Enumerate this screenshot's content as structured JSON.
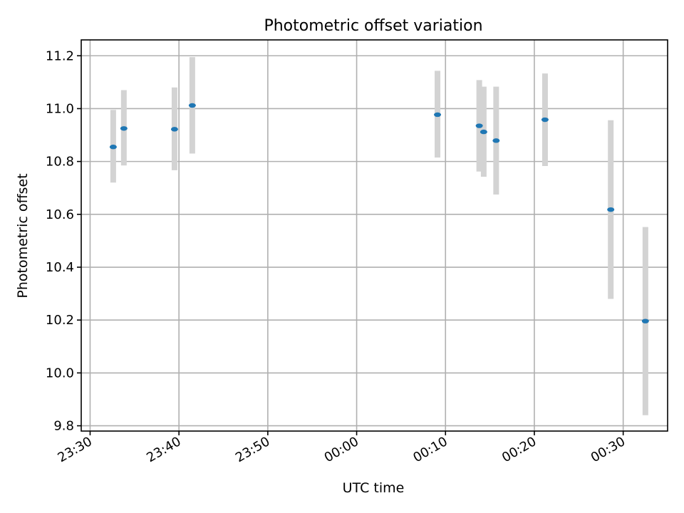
{
  "chart_data": {
    "type": "scatter",
    "title": "Photometric offset variation",
    "xlabel": "UTC time",
    "ylabel": "Photometric offset",
    "grid": true,
    "legend": "none",
    "x_axis": {
      "kind": "time",
      "range": [
        "23:29",
        "00:35"
      ],
      "ticks": [
        "23:30",
        "23:40",
        "23:50",
        "00:00",
        "00:10",
        "00:20",
        "00:30"
      ]
    },
    "y_axis": {
      "range": [
        9.78,
        11.26
      ],
      "ticks": [
        "9.8",
        "10.0",
        "10.2",
        "10.4",
        "10.6",
        "10.8",
        "11.0",
        "11.2"
      ]
    },
    "colors": {
      "point": "#1f77b4",
      "error_bar": "#d3d3d3",
      "grid": "#b0b0b0"
    },
    "series": [
      {
        "points": [
          {
            "x": "23:32.6",
            "y": 10.855,
            "err_low": 10.72,
            "err_high": 10.995
          },
          {
            "x": "23:33.8",
            "y": 10.925,
            "err_low": 10.785,
            "err_high": 11.07
          },
          {
            "x": "23:39.5",
            "y": 10.922,
            "err_low": 10.767,
            "err_high": 11.08
          },
          {
            "x": "23:41.5",
            "y": 11.012,
            "err_low": 10.83,
            "err_high": 11.195
          },
          {
            "x": "00:09.1",
            "y": 10.977,
            "err_low": 10.815,
            "err_high": 11.143
          },
          {
            "x": "00:13.8",
            "y": 10.935,
            "err_low": 10.762,
            "err_high": 11.108
          },
          {
            "x": "00:14.3",
            "y": 10.912,
            "err_low": 10.742,
            "err_high": 11.083
          },
          {
            "x": "00:15.7",
            "y": 10.879,
            "err_low": 10.675,
            "err_high": 11.083
          },
          {
            "x": "00:21.2",
            "y": 10.958,
            "err_low": 10.783,
            "err_high": 11.133
          },
          {
            "x": "00:28.6",
            "y": 10.618,
            "err_low": 10.28,
            "err_high": 10.956
          },
          {
            "x": "00:32.5",
            "y": 10.196,
            "err_low": 9.84,
            "err_high": 10.552
          }
        ]
      }
    ]
  }
}
